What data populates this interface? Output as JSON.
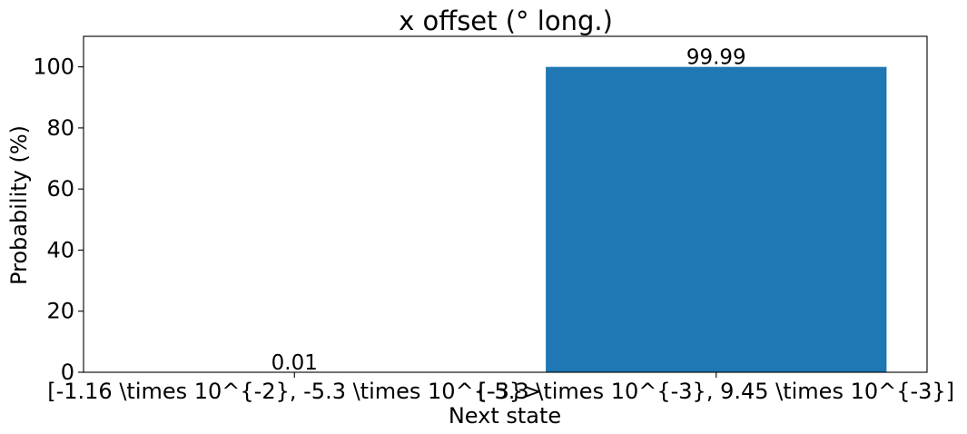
{
  "chart_data": {
    "type": "bar",
    "title": "x offset (° long.)",
    "xlabel": "Next state",
    "ylabel": "Probability (%)",
    "categories": [
      "[-1.16 \\times 10^{-2}, -5.3 \\times 10^{-3}>",
      "[-5.3 \\times 10^{-3}, 9.45 \\times 10^{-3}]"
    ],
    "values": [
      0.01,
      99.99
    ],
    "value_labels": [
      "0.01",
      "99.99"
    ],
    "ylim": [
      0,
      110
    ],
    "yticks": [
      0,
      20,
      40,
      60,
      80,
      100
    ],
    "ytick_labels": [
      "0",
      "20",
      "40",
      "60",
      "80",
      "100"
    ],
    "bar_color": "#1f77b4",
    "grid": false,
    "legend": "none"
  }
}
